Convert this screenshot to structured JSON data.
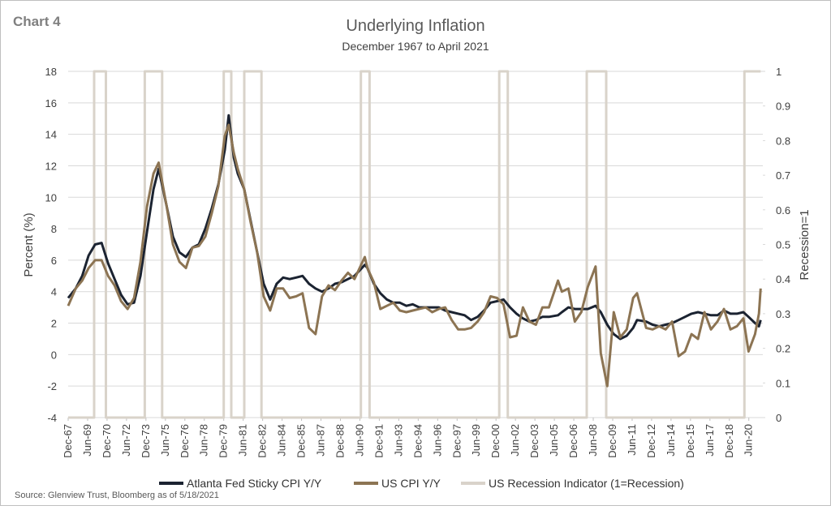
{
  "chart_data": {
    "type": "line",
    "label": "Chart 4",
    "title": "Underlying Inflation",
    "subtitle": "December 1967 to April 2021",
    "ylabel": "Percent (%)",
    "y2label": "Recession=1",
    "source": "Source: Glenview Trust, Bloomberg as of 5/18/2021",
    "grid": true,
    "legend": "bottom",
    "x": [
      1967.92,
      1968.5,
      1969.0,
      1969.5,
      1970.0,
      1970.5,
      1971.0,
      1971.5,
      1972.0,
      1972.5,
      1973.0,
      1973.5,
      1974.0,
      1974.5,
      1974.9,
      1975.5,
      1976.0,
      1976.5,
      1977.0,
      1977.5,
      1978.0,
      1978.5,
      1979.0,
      1979.5,
      1980.0,
      1980.3,
      1980.7,
      1981.0,
      1981.5,
      1982.0,
      1982.5,
      1983.0,
      1983.5,
      1984.0,
      1984.5,
      1985.0,
      1985.5,
      1986.0,
      1986.5,
      1987.0,
      1987.5,
      1988.0,
      1988.5,
      1989.0,
      1989.5,
      1990.0,
      1990.8,
      1991.0,
      1991.5,
      1992.0,
      1992.5,
      1993.0,
      1993.5,
      1994.0,
      1994.5,
      1995.0,
      1995.5,
      1996.0,
      1996.5,
      1997.0,
      1997.5,
      1998.0,
      1998.5,
      1999.0,
      1999.5,
      2000.0,
      2000.5,
      2001.0,
      2001.5,
      2002.0,
      2002.5,
      2003.0,
      2003.5,
      2004.0,
      2004.5,
      2005.0,
      2005.7,
      2006.0,
      2006.5,
      2007.0,
      2007.5,
      2008.0,
      2008.6,
      2009.0,
      2009.5,
      2010.0,
      2010.5,
      2011.0,
      2011.5,
      2011.8,
      2012.5,
      2013.0,
      2013.5,
      2014.0,
      2014.5,
      2015.0,
      2015.5,
      2016.0,
      2016.5,
      2017.0,
      2017.5,
      2018.0,
      2018.5,
      2019.0,
      2019.5,
      2020.0,
      2020.4,
      2020.9,
      2021.2,
      2021.33
    ],
    "series": [
      {
        "name": "Atlanta Fed Sticky CPI Y/Y",
        "color": "#1b2331",
        "values": [
          3.6,
          4.2,
          5.0,
          6.3,
          7.0,
          7.1,
          5.8,
          4.8,
          3.8,
          3.2,
          3.3,
          5.0,
          7.8,
          10.5,
          11.8,
          9.5,
          7.5,
          6.5,
          6.2,
          6.8,
          7.0,
          8.0,
          9.3,
          10.8,
          13.0,
          15.2,
          12.5,
          11.5,
          10.5,
          8.5,
          6.5,
          4.5,
          3.5,
          4.5,
          4.9,
          4.8,
          4.9,
          5.0,
          4.5,
          4.2,
          4.0,
          4.2,
          4.5,
          4.6,
          4.8,
          5.0,
          5.7,
          5.5,
          4.5,
          3.9,
          3.5,
          3.3,
          3.3,
          3.1,
          3.2,
          3.0,
          3.0,
          3.0,
          3.0,
          2.8,
          2.7,
          2.6,
          2.5,
          2.2,
          2.4,
          2.8,
          3.3,
          3.4,
          3.5,
          3.0,
          2.6,
          2.3,
          2.1,
          2.2,
          2.4,
          2.4,
          2.5,
          2.7,
          3.0,
          2.9,
          2.9,
          2.9,
          3.1,
          2.7,
          1.9,
          1.3,
          1.0,
          1.2,
          1.7,
          2.2,
          2.1,
          1.9,
          1.8,
          1.9,
          2.0,
          2.2,
          2.4,
          2.6,
          2.7,
          2.6,
          2.5,
          2.5,
          2.8,
          2.6,
          2.6,
          2.7,
          2.4,
          2.0,
          1.8,
          2.2
        ]
      },
      {
        "name": "US CPI Y/Y",
        "color": "#8c7453",
        "values": [
          3.1,
          4.2,
          4.7,
          5.5,
          6.0,
          6.0,
          5.0,
          4.4,
          3.4,
          2.9,
          3.6,
          5.9,
          9.4,
          11.5,
          12.2,
          9.5,
          7.0,
          5.9,
          5.5,
          6.8,
          6.9,
          7.5,
          9.0,
          10.7,
          13.9,
          14.6,
          12.8,
          11.8,
          10.5,
          8.4,
          6.5,
          3.7,
          2.8,
          4.2,
          4.2,
          3.6,
          3.7,
          3.9,
          1.7,
          1.3,
          3.7,
          4.4,
          4.1,
          4.7,
          5.2,
          4.8,
          6.2,
          5.5,
          4.6,
          2.9,
          3.1,
          3.3,
          2.8,
          2.7,
          2.8,
          2.9,
          3.0,
          2.7,
          2.9,
          3.0,
          2.2,
          1.6,
          1.6,
          1.7,
          2.1,
          2.7,
          3.7,
          3.6,
          3.2,
          1.1,
          1.2,
          3.0,
          2.1,
          1.9,
          3.0,
          3.0,
          4.7,
          4.0,
          4.2,
          2.1,
          2.7,
          4.3,
          5.6,
          0.1,
          -2.0,
          2.7,
          1.1,
          1.6,
          3.6,
          3.9,
          1.7,
          1.6,
          1.8,
          1.6,
          2.1,
          -0.1,
          0.2,
          1.3,
          1.0,
          2.7,
          1.6,
          2.1,
          2.9,
          1.6,
          1.8,
          2.3,
          0.2,
          1.3,
          2.6,
          4.2
        ]
      },
      {
        "name": "US Recession Indicator (1=Recession)",
        "color": "#d9d3ca",
        "axis": "y2",
        "x": [
          1967.92,
          1969.92,
          1969.92,
          1970.83,
          1970.83,
          1973.83,
          1973.83,
          1975.17,
          1975.17,
          1979.92,
          1979.92,
          1980.5,
          1980.5,
          1981.5,
          1981.5,
          1982.83,
          1982.83,
          1990.5,
          1990.5,
          1991.17,
          1991.17,
          2001.17,
          2001.17,
          2001.83,
          2001.83,
          2007.92,
          2007.92,
          2009.42,
          2009.42,
          2020.08,
          2020.08,
          2021.33
        ],
        "values": [
          0,
          0,
          1,
          1,
          0,
          0,
          1,
          1,
          0,
          0,
          1,
          1,
          0,
          0,
          1,
          1,
          0,
          0,
          1,
          1,
          0,
          0,
          1,
          1,
          0,
          0,
          1,
          1,
          0,
          0,
          1,
          1
        ]
      }
    ],
    "xlim": [
      1967.92,
      2021.5
    ],
    "xticks": [
      {
        "value": 1967.92,
        "label": "Dec-67"
      },
      {
        "value": 1969.42,
        "label": "Jun-69"
      },
      {
        "value": 1970.92,
        "label": "Dec-70"
      },
      {
        "value": 1972.42,
        "label": "Jun-72"
      },
      {
        "value": 1973.92,
        "label": "Dec-73"
      },
      {
        "value": 1975.42,
        "label": "Jun-75"
      },
      {
        "value": 1976.92,
        "label": "Dec-76"
      },
      {
        "value": 1978.42,
        "label": "Jun-78"
      },
      {
        "value": 1979.92,
        "label": "Dec-79"
      },
      {
        "value": 1981.42,
        "label": "Jun-81"
      },
      {
        "value": 1982.92,
        "label": "Dec-82"
      },
      {
        "value": 1984.42,
        "label": "Jun-84"
      },
      {
        "value": 1985.92,
        "label": "Dec-85"
      },
      {
        "value": 1987.42,
        "label": "Jun-87"
      },
      {
        "value": 1988.92,
        "label": "Dec-88"
      },
      {
        "value": 1990.42,
        "label": "Jun-90"
      },
      {
        "value": 1991.92,
        "label": "Dec-91"
      },
      {
        "value": 1993.42,
        "label": "Jun-93"
      },
      {
        "value": 1994.92,
        "label": "Dec-94"
      },
      {
        "value": 1996.42,
        "label": "Jun-96"
      },
      {
        "value": 1997.92,
        "label": "Dec-97"
      },
      {
        "value": 1999.42,
        "label": "Jun-99"
      },
      {
        "value": 2000.92,
        "label": "Dec-00"
      },
      {
        "value": 2002.42,
        "label": "Jun-02"
      },
      {
        "value": 2003.92,
        "label": "Dec-03"
      },
      {
        "value": 2005.42,
        "label": "Jun-05"
      },
      {
        "value": 2006.92,
        "label": "Dec-06"
      },
      {
        "value": 2008.42,
        "label": "Jun-08"
      },
      {
        "value": 2009.92,
        "label": "Dec-09"
      },
      {
        "value": 2011.42,
        "label": "Jun-11"
      },
      {
        "value": 2012.92,
        "label": "Dec-12"
      },
      {
        "value": 2014.42,
        "label": "Jun-14"
      },
      {
        "value": 2015.92,
        "label": "Dec-15"
      },
      {
        "value": 2017.42,
        "label": "Jun-17"
      },
      {
        "value": 2018.92,
        "label": "Dec-18"
      },
      {
        "value": 2020.42,
        "label": "Jun-20"
      }
    ],
    "ylim": [
      -4,
      18
    ],
    "yticks": [
      -4,
      -2,
      0,
      2,
      4,
      6,
      8,
      10,
      12,
      14,
      16,
      18
    ],
    "y2lim": [
      0,
      1
    ],
    "y2ticks": [
      0,
      0.1,
      0.2,
      0.3,
      0.4,
      0.5,
      0.6,
      0.7,
      0.8,
      0.9,
      1
    ]
  }
}
